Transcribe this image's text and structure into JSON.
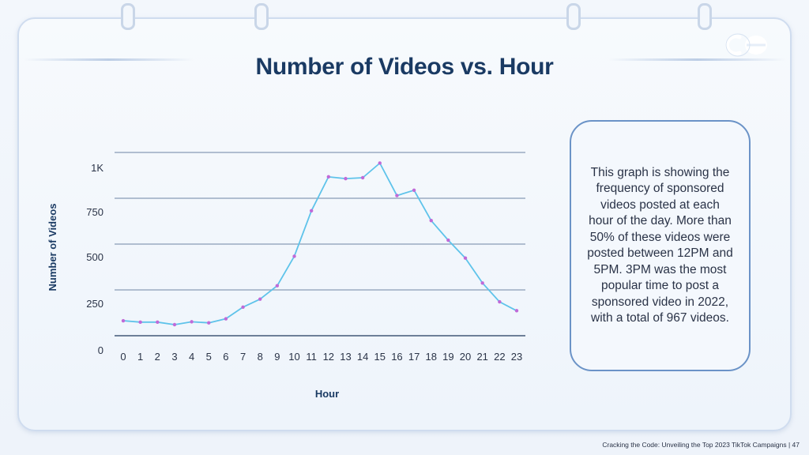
{
  "slide": {
    "title": "Number of Videos vs. Hour",
    "description": "This graph is showing the frequency of sponsored videos posted at each hour of the day. More than 50% of these videos were posted between 12PM and 5PM. 3PM was the most popular time to post a sponsored video in 2022, with a total of 967 videos.",
    "footer": "Cracking the Code: Unveiling the Top 2023 TikTok Campaigns | 47",
    "accent_color": "#1a3a63",
    "line_color": "#5ec3ea",
    "marker_color": "#c06ad8"
  },
  "chart_data": {
    "type": "line",
    "title": "Number of Videos vs. Hour",
    "xlabel": "Hour",
    "ylabel": "Number of Videos",
    "categories": [
      "0",
      "1",
      "2",
      "3",
      "4",
      "5",
      "6",
      "7",
      "8",
      "9",
      "10",
      "11",
      "12",
      "13",
      "14",
      "15",
      "16",
      "17",
      "18",
      "19",
      "20",
      "21",
      "22",
      "23"
    ],
    "y_tick_labels": [
      "0",
      "250",
      "500",
      "750",
      "1K"
    ],
    "y_ticks": [
      0,
      250,
      500,
      750,
      1000
    ],
    "ylim": [
      0,
      1000
    ],
    "grid": true,
    "series": [
      {
        "values": [
          84,
          76,
          76,
          62,
          78,
          72,
          95,
          160,
          205,
          280,
          445,
          700,
          890,
          880,
          885,
          967,
          785,
          815,
          645,
          535,
          435,
          295,
          190,
          140
        ]
      }
    ]
  }
}
